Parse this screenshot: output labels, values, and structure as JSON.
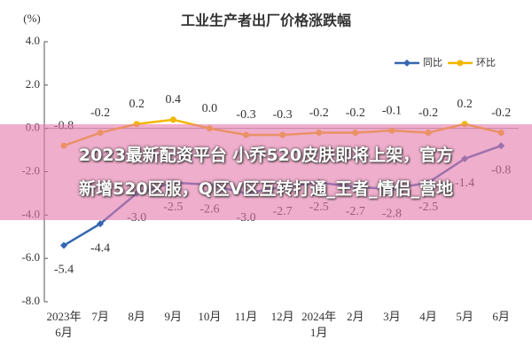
{
  "chart_data": {
    "type": "line",
    "title": "工业生产者出厂价格涨跌幅",
    "y_label": "(%)",
    "categories": [
      "2023年\n6月",
      "7月",
      "8月",
      "9月",
      "10月",
      "11月",
      "12月",
      "2024年\n1月",
      "2月",
      "3月",
      "4月",
      "5月",
      "6月"
    ],
    "series": [
      {
        "name": "同比",
        "color": "#3566b0",
        "marker": "diamond",
        "values": [
          -5.4,
          -4.4,
          -3.0,
          -2.5,
          -2.6,
          -3.0,
          -2.7,
          -2.5,
          -2.7,
          -2.8,
          -2.5,
          -1.4,
          -0.8
        ],
        "value_labels": [
          "-5.4",
          "-4.4",
          "-3.0",
          "-2.5",
          "-2.6",
          "-3.0",
          "-2.7",
          "-2.5",
          "-2.7",
          "-2.8",
          "-2.5",
          "-1.4",
          "-0.8"
        ],
        "label_side": "below"
      },
      {
        "name": "环比",
        "color": "#f2b600",
        "marker": "circle",
        "values": [
          -0.8,
          -0.2,
          0.2,
          0.4,
          0.0,
          -0.3,
          -0.3,
          -0.2,
          -0.2,
          -0.1,
          -0.2,
          0.2,
          -0.2
        ],
        "value_labels": [
          "-0.8",
          "-0.2",
          "0.2",
          "0.4",
          "0.0",
          "-0.3",
          "-0.3",
          "-0.2",
          "-0.2",
          "-0.1",
          "-0.2",
          "0.2",
          "-0.2"
        ],
        "label_side": "above"
      }
    ],
    "ylim": [
      -8,
      4
    ],
    "yticks": [
      {
        "value": 4,
        "label": "4.0"
      },
      {
        "value": 2,
        "label": "2.0"
      },
      {
        "value": 0,
        "label": "0.0"
      },
      {
        "value": -2,
        "label": "-2.0"
      },
      {
        "value": -4,
        "label": "-4.0"
      },
      {
        "value": -6,
        "label": "-6.0"
      },
      {
        "value": -8,
        "label": "-8.0"
      }
    ],
    "grid": false,
    "legend": "upper right"
  },
  "overlay": {
    "lines": [
      "2023最新配资平台 小乔520皮肤即将上架，官方",
      "新增520区服，Q区V区互转打通_王者_情侣_营地"
    ]
  }
}
